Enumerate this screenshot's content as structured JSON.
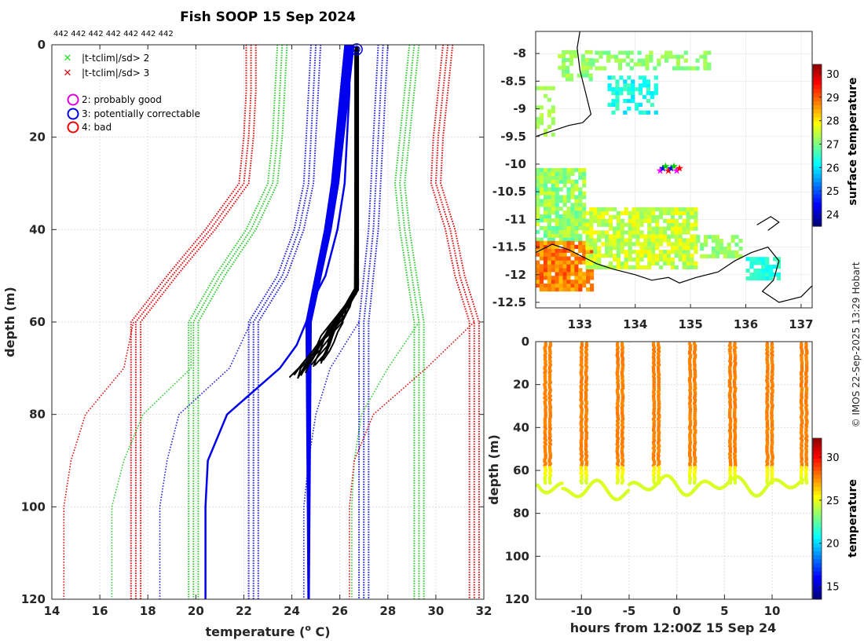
{
  "chart_data": [
    {
      "type": "line",
      "title": "Fish SOOP 15 Sep 2024",
      "xlabel": "temperature (",
      "xlabel_sup": "o",
      "xlabel_end": " C)",
      "ylabel": "depth (m)",
      "xlim": [
        14,
        32
      ],
      "ylim": [
        0,
        120
      ],
      "y_reversed": true,
      "grid": true,
      "xticks": [
        14,
        16,
        18,
        20,
        22,
        24,
        26,
        28,
        30,
        32
      ],
      "yticks": [
        0,
        20,
        40,
        60,
        80,
        100,
        120
      ],
      "top_labels": "442 442 442 442 442 442 442",
      "legend": {
        "position": "top-left",
        "markers": [
          {
            "label": "|t-tclim|/sd> 2",
            "color": "#22dd22",
            "marker": "x"
          },
          {
            "label": "|t-tclim|/sd> 3",
            "color": "#dd0000",
            "marker": "x"
          }
        ],
        "flags": [
          {
            "label": "2: probably good",
            "color": "#dd00dd",
            "marker": "o"
          },
          {
            "label": "3: potentially correctable",
            "color": "#0000dd",
            "marker": "o"
          },
          {
            "label": "4: bad",
            "color": "#ee0000",
            "marker": "o"
          }
        ]
      },
      "clim_depth": [
        0,
        10,
        20,
        30,
        40,
        50,
        60,
        62,
        64,
        66,
        68,
        70,
        80,
        90,
        100,
        110,
        120
      ],
      "series": [
        {
          "name": "red_left",
          "color": "#dd1111",
          "dashed": true,
          "values": [
            22.3,
            22.3,
            22.2,
            22.0,
            20.6,
            19.0,
            17.5,
            17.5,
            17.5,
            17.5,
            17.5,
            17.5,
            17.5,
            17.5,
            17.5,
            17.5,
            17.5
          ]
        },
        {
          "name": "green_left",
          "color": "#33cc33",
          "dashed": true,
          "values": [
            23.6,
            23.5,
            23.4,
            23.2,
            22.3,
            21.0,
            19.9,
            19.9,
            19.9,
            19.9,
            19.9,
            19.9,
            19.9,
            19.9,
            19.9,
            19.9,
            19.9
          ]
        },
        {
          "name": "blue_left",
          "color": "#2222dd",
          "dashed": true,
          "values": [
            25.0,
            24.9,
            24.8,
            24.7,
            24.3,
            23.6,
            22.4,
            22.4,
            22.4,
            22.4,
            22.4,
            22.4,
            22.4,
            22.4,
            22.4,
            22.4,
            22.4
          ]
        },
        {
          "name": "blue_right",
          "color": "#2222dd",
          "dashed": true,
          "values": [
            27.8,
            27.7,
            27.6,
            27.5,
            27.4,
            27.2,
            27.0,
            27.0,
            27.0,
            27.0,
            27.0,
            27.0,
            27.0,
            27.0,
            27.0,
            27.0,
            27.0
          ]
        },
        {
          "name": "green_right",
          "color": "#33cc33",
          "dashed": true,
          "values": [
            29.1,
            28.9,
            28.7,
            28.5,
            28.7,
            29.0,
            29.3,
            29.3,
            29.3,
            29.3,
            29.3,
            29.3,
            29.3,
            29.3,
            29.3,
            29.3,
            29.3
          ]
        },
        {
          "name": "red_right",
          "color": "#dd1111",
          "dashed": true,
          "values": [
            30.5,
            30.3,
            30.1,
            30.0,
            30.6,
            31.0,
            31.6,
            31.6,
            31.6,
            31.6,
            31.6,
            31.6,
            31.6,
            31.6,
            31.6,
            31.6,
            31.6
          ]
        }
      ],
      "aux_series": [
        {
          "name": "red_left_shallow",
          "color": "#dd1111",
          "depth": [
            60,
            70,
            80,
            90,
            100,
            120
          ],
          "values": [
            17.4,
            17.0,
            15.4,
            14.8,
            14.5,
            14.5
          ]
        },
        {
          "name": "green_left_shallow",
          "color": "#33cc33",
          "depth": [
            60,
            70,
            80,
            90,
            100,
            120
          ],
          "values": [
            19.8,
            19.8,
            17.8,
            17.0,
            16.5,
            16.5
          ]
        },
        {
          "name": "blue_left_shallow",
          "color": "#2222dd",
          "depth": [
            60,
            70,
            80,
            90,
            100,
            120
          ],
          "values": [
            22.3,
            21.4,
            19.3,
            18.8,
            18.5,
            18.5
          ]
        },
        {
          "name": "blue_right_shallow",
          "color": "#2222dd",
          "depth": [
            60,
            70,
            80,
            90,
            100,
            120
          ],
          "values": [
            26.8,
            25.6,
            25.0,
            24.7,
            24.5,
            24.5
          ]
        },
        {
          "name": "green_right_shallow",
          "color": "#33cc33",
          "depth": [
            60,
            70,
            80,
            90,
            100,
            120
          ],
          "values": [
            29.3,
            28.0,
            26.9,
            26.6,
            26.5,
            26.5
          ]
        },
        {
          "name": "red_right_shallow",
          "color": "#dd1111",
          "depth": [
            60,
            70,
            80,
            90,
            100,
            120
          ],
          "values": [
            31.6,
            29.6,
            27.4,
            26.6,
            26.4,
            26.4
          ]
        }
      ],
      "blue_profile": {
        "color": "#0000ee",
        "depth": [
          0,
          2,
          10,
          20,
          30,
          40,
          50,
          55,
          60,
          65,
          70,
          80,
          90,
          100,
          120
        ],
        "temp": [
          26.3,
          26.4,
          26.4,
          26.3,
          26.2,
          25.9,
          25.4,
          24.9,
          24.6,
          24.2,
          23.5,
          21.3,
          20.5,
          20.4,
          20.4
        ]
      },
      "blue_bundle": {
        "depth": [
          0,
          5,
          10,
          20,
          30,
          40,
          50,
          60,
          70,
          80,
          100,
          120
        ],
        "temp": [
          26.4,
          26.3,
          26.2,
          26.0,
          25.8,
          25.5,
          25.1,
          24.7,
          24.7,
          24.7,
          24.7,
          24.7
        ]
      },
      "black_profiles": {
        "count": 14,
        "surface_temp": 26.7,
        "depth_top": 52,
        "depth_bottom_min": 68,
        "depth_bottom_max": 72,
        "temp_bottom_min": 23.9,
        "temp_bottom_max": 25.3
      },
      "flag_marker": {
        "temp": 26.7,
        "depth": 1
      }
    },
    {
      "type": "heatmap",
      "name": "map",
      "xticks": [
        133,
        134,
        135,
        136,
        137
      ],
      "yticks": [
        -8,
        -8.5,
        -9,
        -9.5,
        -10,
        -10.5,
        -11,
        -11.5,
        -12,
        -12.5
      ],
      "xlim": [
        132.2,
        137.2
      ],
      "ylim": [
        -12.6,
        -7.6
      ],
      "colorbar": {
        "label": "surface temperature",
        "ticks": [
          24,
          25,
          26,
          27,
          28,
          29,
          30
        ],
        "min": 23.5,
        "max": 30.4
      }
    },
    {
      "type": "scatter",
      "name": "timeseries",
      "xlabel": "hours from 12:00Z 15 Sep 24",
      "ylabel": "depth (m)",
      "xticks": [
        -10,
        -5,
        0,
        5,
        10
      ],
      "yticks": [
        0,
        20,
        40,
        60,
        80,
        100,
        120
      ],
      "xlim": [
        -14.8,
        14.2
      ],
      "ylim": [
        0,
        120
      ],
      "profile_times": [
        -13.8,
        -10.0,
        -6.2,
        -2.4,
        1.4,
        5.6,
        9.5,
        13.1
      ],
      "colorbar": {
        "label": "temperature",
        "ticks": [
          15,
          20,
          25,
          30
        ],
        "min": 13.5,
        "max": 32.2
      }
    }
  ],
  "credit": "© IMOS 22-Sep-2025 13:29 Hobart"
}
